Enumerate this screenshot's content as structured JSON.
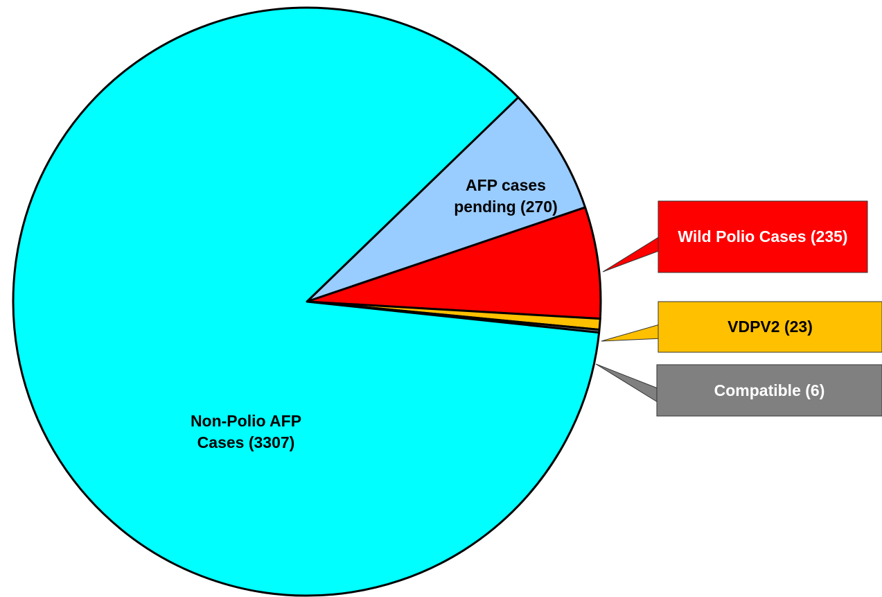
{
  "chart_data": {
    "type": "pie",
    "categories": [
      "AFP cases pending (270)",
      "Wild Polio Cases (235)",
      "VDPV2 (23)",
      "Compatible (6)",
      "Non-Polio AFP Cases (3307)"
    ],
    "values": [
      270,
      235,
      23,
      6,
      3307
    ],
    "colors": [
      "#99ccff",
      "#ff0000",
      "#ffc000",
      "#808080",
      "#00ffff"
    ]
  }
}
